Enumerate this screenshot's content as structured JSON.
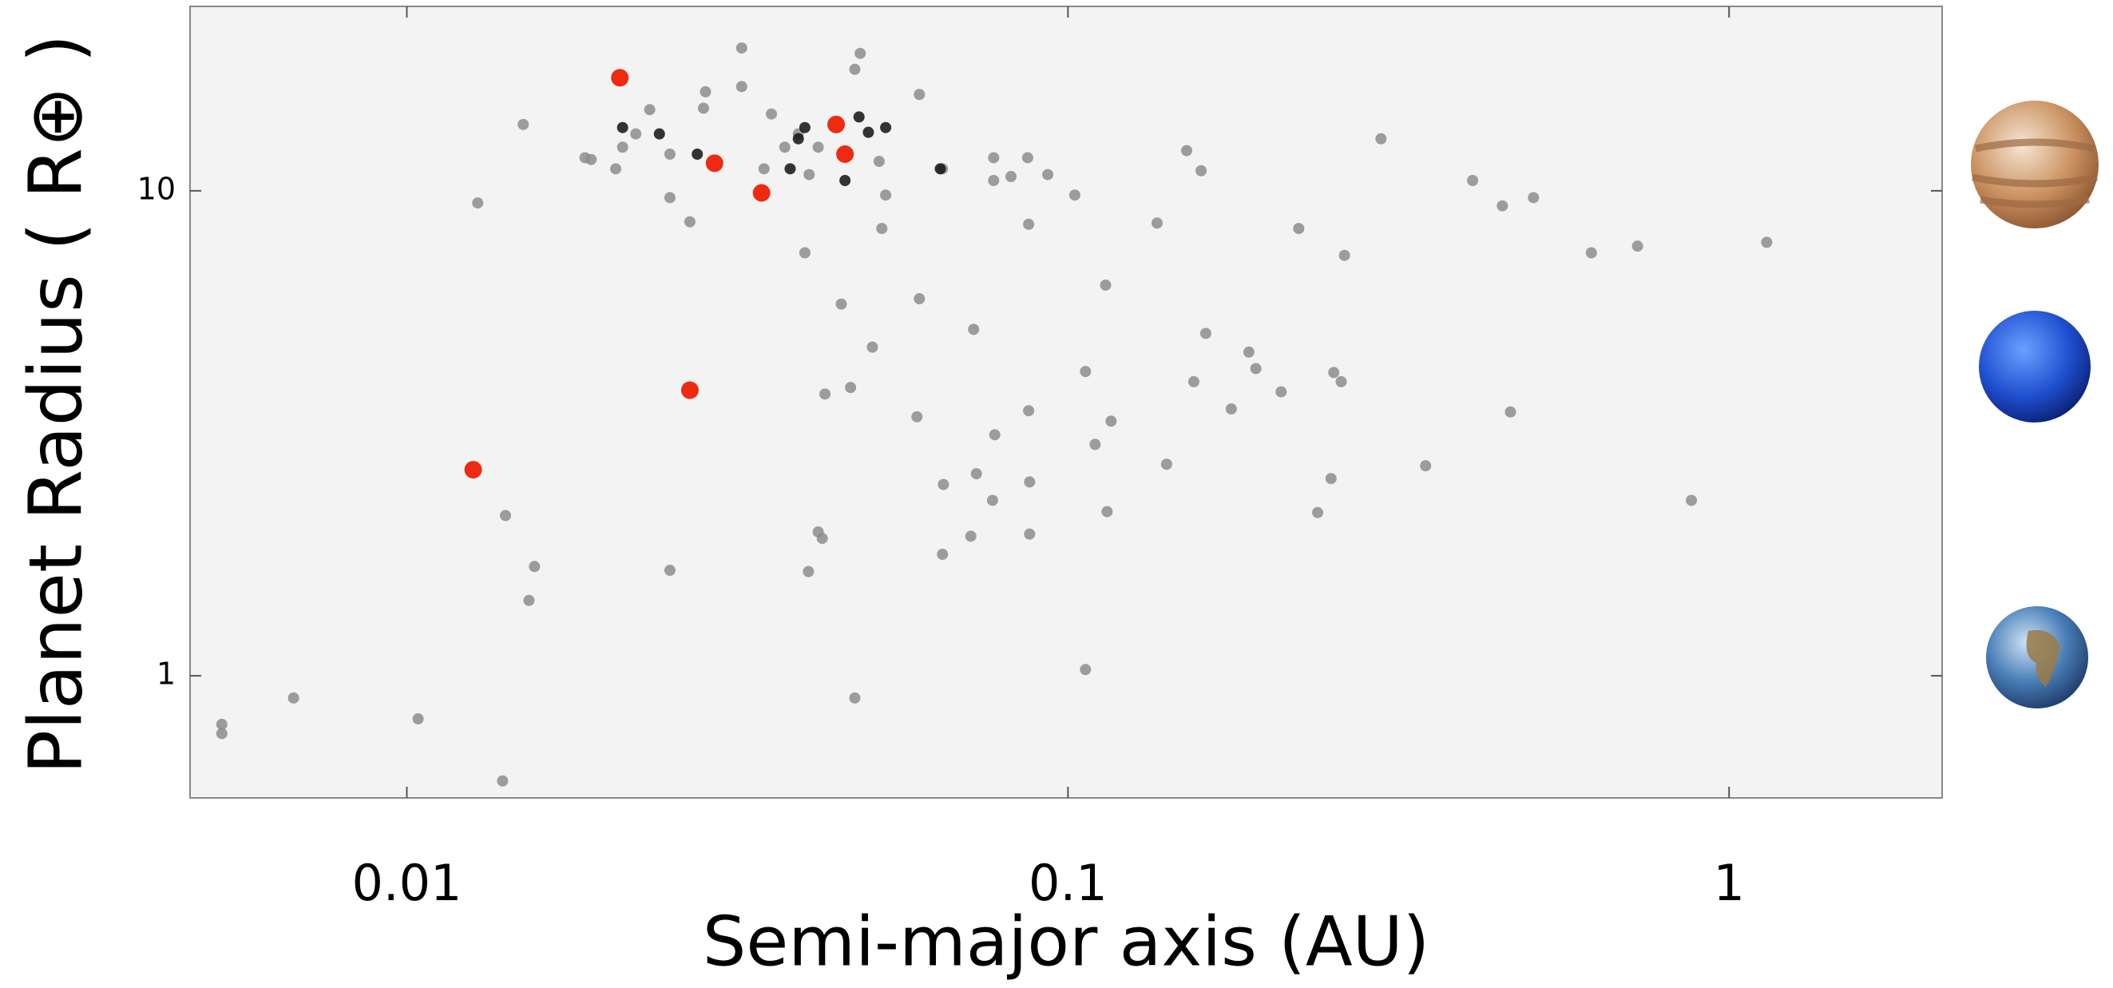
{
  "chart_data": {
    "type": "scatter",
    "xlabel": "Semi-major axis (AU)",
    "ylabel": "Planet Radius ( R⊕ )",
    "xscale": "log",
    "yscale": "log",
    "xlim": [
      0.0047,
      2.1
    ],
    "ylim": [
      0.56,
      24
    ],
    "xticks": [
      0.01,
      0.1,
      1
    ],
    "yticks": [
      1,
      10
    ],
    "grid": false,
    "series": [
      {
        "color": "#8c8c8c",
        "x": [
          0.00525,
          0.00525,
          0.00674,
          0.0104,
          0.01396,
          0.0141,
          0.0156,
          0.0153,
          0.0128,
          0.015,
          0.0186,
          0.019,
          0.0207,
          0.0212,
          0.0222,
          0.0233,
          0.025,
          0.025,
          0.0268,
          0.0281,
          0.0283,
          0.0321,
          0.0321,
          0.0347,
          0.0356,
          0.0373,
          0.0391,
          0.04,
          0.0406,
          0.0419,
          0.0454,
          0.0429,
          0.0469,
          0.0476,
          0.0485,
          0.0506,
          0.0518,
          0.053,
          0.0523,
          0.0596,
          0.0596,
          0.0591,
          0.0646,
          0.0648,
          0.0646,
          0.072,
          0.0727,
          0.0713,
          0.0772,
          0.0772,
          0.0775,
          0.0769,
          0.082,
          0.0869,
          0.0872,
          0.0872,
          0.0875,
          0.0875,
          0.0932,
          0.1024,
          0.1063,
          0.114,
          0.1146,
          0.1162,
          0.1063,
          0.1099,
          0.1364,
          0.141,
          0.1512,
          0.159,
          0.155,
          0.1616,
          0.1766,
          0.1878,
          0.1924,
          0.2101,
          0.2234,
          0.2386,
          0.25,
          0.262,
          0.2524,
          0.259,
          0.2975,
          0.3475,
          0.4093,
          0.454,
          0.506,
          0.467,
          0.619,
          0.727,
          0.877,
          1.14,
          0.0476,
          0.0405,
          0.0419,
          0.0425,
          0.025
        ],
        "values": [
          0.794,
          0.76,
          0.9,
          0.815,
          0.607,
          2.14,
          1.68,
          1.43,
          9.44,
          13.7,
          11.7,
          11.6,
          11.1,
          12.3,
          13.1,
          14.7,
          11.9,
          9.68,
          8.63,
          14.8,
          16.0,
          16.4,
          19.7,
          11.1,
          14.4,
          12.3,
          13.1,
          7.45,
          10.8,
          12.3,
          5.84,
          3.81,
          3.93,
          17.8,
          19.2,
          4.76,
          11.5,
          9.8,
          8.36,
          15.8,
          5.99,
          3.42,
          11.1,
          2.48,
          1.78,
          5.18,
          2.61,
          1.94,
          11.7,
          10.5,
          3.14,
          2.3,
          10.7,
          11.7,
          8.53,
          3.52,
          2.51,
          1.96,
          10.8,
          9.8,
          1.03,
          6.39,
          2.18,
          3.35,
          4.24,
          3.0,
          8.58,
          2.73,
          12.1,
          11.0,
          4.04,
          5.08,
          3.55,
          4.65,
          4.3,
          3.85,
          8.36,
          2.17,
          2.55,
          7.36,
          4.22,
          4.04,
          12.8,
          2.71,
          10.5,
          9.31,
          9.68,
          3.5,
          7.45,
          7.69,
          2.3,
          7.83,
          0.9,
          1.64,
          1.98,
          1.92,
          1.65
        ]
      },
      {
        "color": "#111111",
        "x": [
          0.0212,
          0.0241,
          0.0275,
          0.0391,
          0.04,
          0.0483,
          0.0499,
          0.046,
          0.0641,
          0.053,
          0.038
        ],
        "values": [
          13.5,
          13.1,
          11.9,
          12.8,
          13.5,
          14.2,
          13.2,
          10.5,
          11.1,
          13.5,
          11.1
        ]
      },
      {
        "color": "#ee2a10",
        "x": [
          0.021,
          0.0292,
          0.0344,
          0.0446,
          0.046,
          0.0268,
          0.0126
        ],
        "values": [
          17.1,
          11.4,
          9.9,
          13.7,
          11.9,
          3.88,
          2.66
        ]
      }
    ]
  }
}
